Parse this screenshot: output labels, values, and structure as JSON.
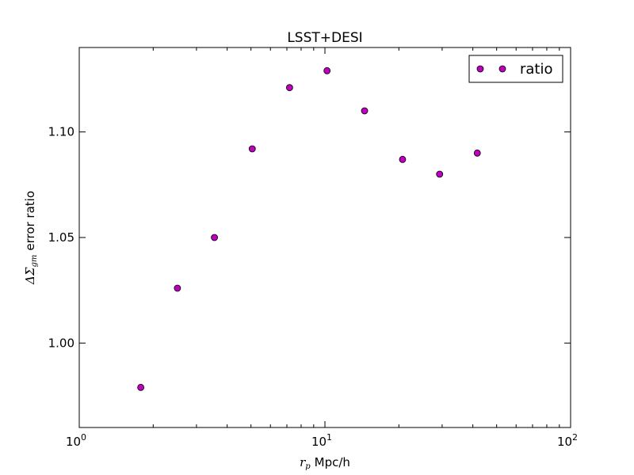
{
  "chart_data": {
    "type": "scatter",
    "title": "LSST+DESI",
    "xlabel_symbol": "r",
    "xlabel_subscript": "p",
    "xlabel_text": "Mpc/h",
    "ylabel_symbol": "ΔΣ",
    "ylabel_subscript": "gm",
    "ylabel_text": "error ratio",
    "xscale": "log",
    "xlim": [
      1,
      100
    ],
    "ylim": [
      0.96,
      1.14
    ],
    "xticks": [
      {
        "value": 1,
        "base": "10",
        "exp": "0"
      },
      {
        "value": 10,
        "base": "10",
        "exp": "1"
      },
      {
        "value": 100,
        "base": "10",
        "exp": "2"
      }
    ],
    "yticks": [
      {
        "value": 1.0,
        "label": "1.00"
      },
      {
        "value": 1.05,
        "label": "1.05"
      },
      {
        "value": 1.1,
        "label": "1.10"
      }
    ],
    "grid": false,
    "legend_position": "top-right",
    "series": [
      {
        "name": "ratio",
        "color": "#bf00bf",
        "marker": "circle",
        "x": [
          1.78,
          2.51,
          3.55,
          5.06,
          7.18,
          10.2,
          14.5,
          20.7,
          29.3,
          41.7
        ],
        "y": [
          0.979,
          1.026,
          1.05,
          1.092,
          1.121,
          1.129,
          1.11,
          1.087,
          1.08,
          1.09
        ]
      }
    ]
  }
}
